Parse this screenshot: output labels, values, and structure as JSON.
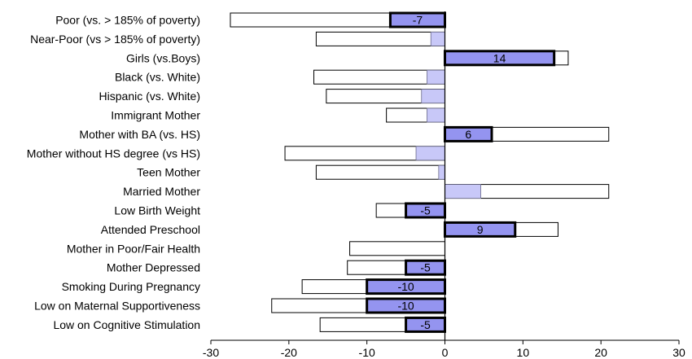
{
  "chart_data": {
    "type": "bar",
    "orientation": "horizontal",
    "title": "",
    "xlabel": "",
    "ylabel": "",
    "xlim": [
      -30,
      30
    ],
    "x_ticks": [
      -30,
      -20,
      -10,
      0,
      10,
      20,
      30
    ],
    "x_tick_labels": [
      "-30",
      "-20",
      "-10",
      "0",
      "10",
      "20",
      "30"
    ],
    "grid": false,
    "colors": {
      "outline_bar_fill": "#ffffff",
      "outline_bar_stroke": "#000000",
      "light_bar_fill": "#c8c8f8",
      "dark_bar_fill": "#9494f0"
    },
    "categories": [
      "Poor (vs. > 185% of poverty)",
      "Near-Poor  (vs > 185% of poverty)",
      "Girls (vs.Boys)",
      "Black (vs. White)",
      "Hispanic (vs. White)",
      "Immigrant Mother",
      "Mother with BA (vs. HS)",
      "Mother without HS degree (vs HS)",
      "Teen Mother",
      "Married Mother",
      "Low Birth Weight",
      "Attended Preschool",
      "Mother in Poor/Fair Health",
      "Mother Depressed ",
      "Smoking During Pregnancy",
      "Low on Maternal Supportiveness",
      "Low on Cognitive Stimulation"
    ],
    "series": [
      {
        "style": "white outlined bar",
        "values": [
          -27.5,
          -16.5,
          15.8,
          -16.8,
          -15.2,
          -7.5,
          21.0,
          -20.5,
          -16.5,
          21.0,
          -8.8,
          14.5,
          -12.2,
          -12.5,
          -18.3,
          -22.2,
          -16.0
        ]
      },
      {
        "style": "shaded inner bar (dark with thick border = labeled)",
        "values": [
          -7,
          -1.8,
          14,
          -2.3,
          -3.0,
          -2.3,
          6,
          -3.7,
          -0.8,
          4.6,
          -5,
          9,
          0,
          -5,
          -10,
          -10,
          -5
        ],
        "labels": [
          "-7",
          "",
          "14",
          "",
          "",
          "",
          "6",
          "",
          "",
          "",
          "-5",
          "9",
          "",
          "-5",
          "-10",
          "-10",
          "-5"
        ],
        "emphasized": [
          true,
          false,
          true,
          false,
          false,
          false,
          true,
          false,
          false,
          false,
          true,
          true,
          false,
          true,
          true,
          true,
          true
        ]
      }
    ]
  }
}
